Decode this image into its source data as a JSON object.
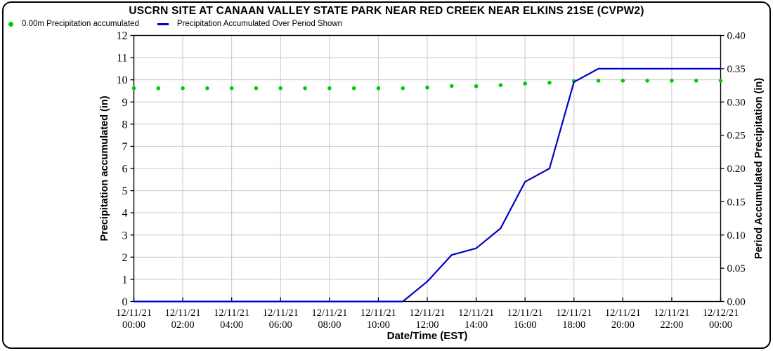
{
  "frame": {
    "border_color": "#000000",
    "background": "#ffffff"
  },
  "title": "USCRN SITE AT CANAAN VALLEY STATE PARK NEAR RED CREEK NEAR ELKINS 21SE (CVPW2)",
  "legend": {
    "items": [
      {
        "label": "0.00m Precipitation accumulated",
        "marker": "dot",
        "color": "#00cc00"
      },
      {
        "label": "Precipitation Accumulated Over Period Shown",
        "marker": "line",
        "color": "#0000cc"
      }
    ]
  },
  "chart_data": {
    "type": "line",
    "title": "USCRN SITE AT CANAAN VALLEY STATE PARK NEAR RED CREEK NEAR ELKINS 21SE (CVPW2)",
    "grid": true,
    "gridline_color": "#c8c8c8",
    "frame_color": "#000000",
    "x_axis": {
      "label": "Date/Time (EST)",
      "unit": "hours",
      "range": [
        0,
        24
      ],
      "tick_interval_hours": 2,
      "tick_labels": [
        {
          "hour": 0,
          "date": "12/11/21",
          "time": "00:00"
        },
        {
          "hour": 2,
          "date": "12/11/21",
          "time": "02:00"
        },
        {
          "hour": 4,
          "date": "12/11/21",
          "time": "04:00"
        },
        {
          "hour": 6,
          "date": "12/11/21",
          "time": "06:00"
        },
        {
          "hour": 8,
          "date": "12/11/21",
          "time": "08:00"
        },
        {
          "hour": 10,
          "date": "12/11/21",
          "time": "10:00"
        },
        {
          "hour": 12,
          "date": "12/11/21",
          "time": "12:00"
        },
        {
          "hour": 14,
          "date": "12/11/21",
          "time": "14:00"
        },
        {
          "hour": 16,
          "date": "12/11/21",
          "time": "16:00"
        },
        {
          "hour": 18,
          "date": "12/11/21",
          "time": "18:00"
        },
        {
          "hour": 20,
          "date": "12/11/21",
          "time": "20:00"
        },
        {
          "hour": 22,
          "date": "12/11/21",
          "time": "22:00"
        },
        {
          "hour": 24,
          "date": "12/12/21",
          "time": "00:00"
        }
      ]
    },
    "y_axis_left": {
      "label": "Precipitation accumulated (in)",
      "min": 0,
      "max": 12,
      "tick_step": 1,
      "tick_labels": [
        "0",
        "1",
        "2",
        "3",
        "4",
        "5",
        "6",
        "7",
        "8",
        "9",
        "10",
        "11",
        "12"
      ]
    },
    "y_axis_right": {
      "label": "Period Accumulated Precipitation (in)",
      "min": 0.0,
      "max": 0.4,
      "tick_step": 0.05,
      "tick_labels": [
        "0.00",
        "0.05",
        "0.10",
        "0.15",
        "0.20",
        "0.25",
        "0.30",
        "0.35",
        "0.40"
      ]
    },
    "series": [
      {
        "name": "0.00m Precipitation accumulated",
        "style": "scatter",
        "axis": "left",
        "color": "#00cc00",
        "x_hours": [
          0,
          1,
          2,
          3,
          4,
          5,
          6,
          7,
          8,
          9,
          10,
          11,
          12,
          13,
          14,
          15,
          16,
          17,
          18,
          19,
          20,
          21,
          22,
          23,
          24
        ],
        "values": [
          9.62,
          9.62,
          9.62,
          9.62,
          9.62,
          9.62,
          9.62,
          9.62,
          9.62,
          9.62,
          9.62,
          9.62,
          9.65,
          9.72,
          9.71,
          9.76,
          9.83,
          9.87,
          9.95,
          9.96,
          9.96,
          9.96,
          9.96,
          9.96,
          9.96
        ]
      },
      {
        "name": "Precipitation Accumulated Over Period Shown",
        "style": "line",
        "axis": "right",
        "color": "#0000cc",
        "x_hours": [
          0,
          1,
          2,
          3,
          4,
          5,
          6,
          7,
          8,
          9,
          10,
          11,
          12,
          13,
          14,
          15,
          16,
          17,
          18,
          19,
          20,
          21,
          22,
          23,
          24
        ],
        "values": [
          0,
          0,
          0,
          0,
          0,
          0,
          0,
          0,
          0,
          0,
          0,
          0,
          0.03,
          0.07,
          0.08,
          0.11,
          0.18,
          0.2,
          0.33,
          0.35,
          0.35,
          0.35,
          0.35,
          0.35,
          0.35
        ]
      }
    ]
  }
}
